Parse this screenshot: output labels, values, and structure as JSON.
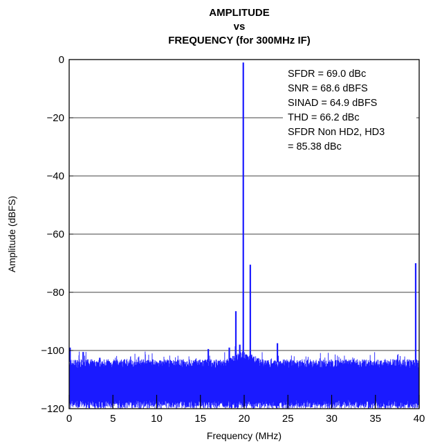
{
  "chart_data": {
    "type": "line",
    "title_lines": [
      "AMPLITUDE",
      "vs",
      "FREQUENCY (for 300MHz IF)"
    ],
    "xlabel": "Frequency (MHz)",
    "ylabel": "Amplitude (dBFS)",
    "xlim": [
      0,
      40
    ],
    "ylim": [
      -120,
      0
    ],
    "xticks": [
      0,
      5,
      10,
      15,
      20,
      25,
      30,
      35,
      40
    ],
    "yticks": [
      0,
      -20,
      -40,
      -60,
      -80,
      -100,
      -120
    ],
    "xtick_labels": [
      "0",
      "5",
      "10",
      "15",
      "20",
      "25",
      "30",
      "35",
      "40"
    ],
    "ytick_labels": [
      "0",
      "−20",
      "−40",
      "−60",
      "−80",
      "−100",
      "−120"
    ],
    "grid": "horizontal",
    "series_color": "#1a1aff",
    "annotations": [
      "SFDR = 69.0 dBc",
      "SNR = 68.6 dBFS",
      "SINAD = 64.9 dBFS",
      "THD = 66.2 dBc",
      "SFDR Non HD2, HD3",
      "= 85.38 dBc"
    ],
    "noise_floor": {
      "min": -120,
      "top_range": [
        -106,
        -103
      ]
    },
    "spurs": [
      {
        "x": 0.1,
        "y": -99
      },
      {
        "x": 1.6,
        "y": -100.5
      },
      {
        "x": 3.5,
        "y": -102.5
      },
      {
        "x": 15.9,
        "y": -99.5
      },
      {
        "x": 18.3,
        "y": -99
      },
      {
        "x": 19.05,
        "y": -86.5
      },
      {
        "x": 19.5,
        "y": -98
      },
      {
        "x": 19.9,
        "y": -1
      },
      {
        "x": 20.7,
        "y": -70.5
      },
      {
        "x": 23.8,
        "y": -97.5
      },
      {
        "x": 39.6,
        "y": -70
      }
    ]
  }
}
